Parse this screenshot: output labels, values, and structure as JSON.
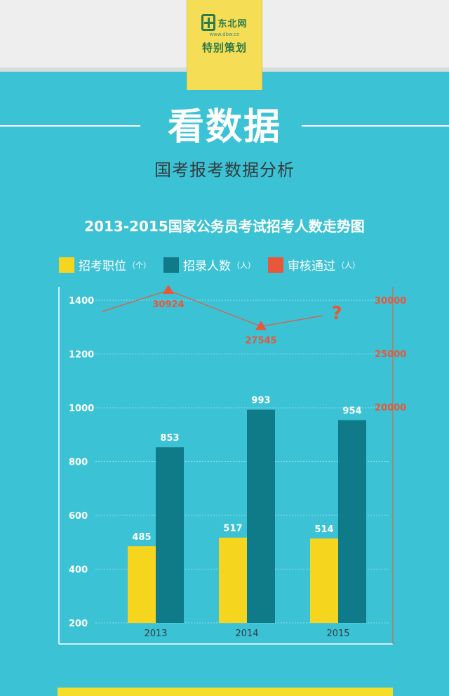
{
  "brand": {
    "logo_name": "东北网",
    "logo_url": "www.dbw.cn",
    "badge_text": "特别策划"
  },
  "hero": {
    "title": "看数据",
    "subtitle": "国考报考数据分析"
  },
  "colors": {
    "background": "#3cc2d5",
    "positions": "#f5d51e",
    "recruits": "#0f7a88",
    "approved": "#e8573a"
  },
  "chart_data": {
    "type": "bar",
    "title": "2013-2015国家公务员考试招考人数走势图",
    "categories": [
      "2013",
      "2014",
      "2015"
    ],
    "series": [
      {
        "name": "招考职位",
        "unit": "（个）",
        "values": [
          485,
          517,
          514
        ],
        "labels": [
          "485",
          "517",
          "514"
        ],
        "color": "#f5d51e"
      },
      {
        "name": "招录人数",
        "unit": "（人）",
        "values": [
          853,
          993,
          954
        ],
        "labels": [
          "853",
          "993",
          "954"
        ],
        "color": "#0f7a88"
      }
    ],
    "line_series": {
      "name": "审核通过",
      "unit": "（人）",
      "values": [
        30924,
        27545,
        null
      ],
      "labels": [
        "30924",
        "27545",
        "?"
      ],
      "color": "#e8573a"
    },
    "y_left": {
      "ticks": [
        "200",
        "400",
        "600",
        "800",
        "1000",
        "1200",
        "1400"
      ],
      "range": [
        200,
        1400
      ]
    },
    "y_right": {
      "ticks": [
        "20000",
        "25000",
        "30000"
      ],
      "range": [
        20000,
        30000
      ]
    },
    "grid": true,
    "legend_position": "top-left"
  }
}
